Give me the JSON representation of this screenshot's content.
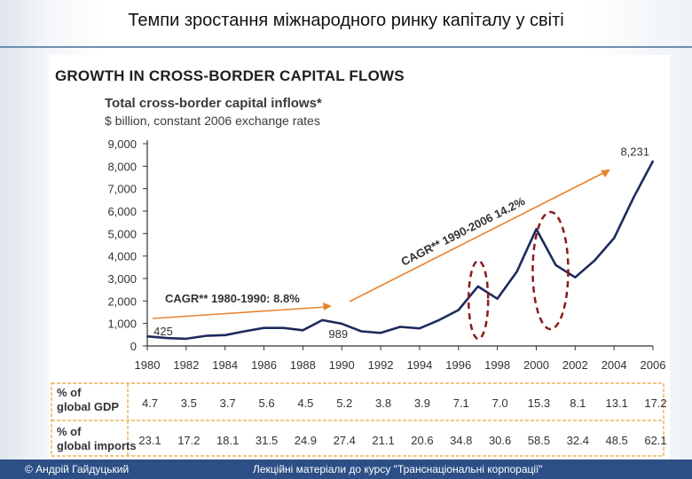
{
  "slide": {
    "title": "Темпи зростання міжнародного ринку капіталу у світі",
    "footer_author": "© Андрій Гайдуцький",
    "footer_course": "Лекційні матеріали до курсу \"Транснаціональні корпорації\""
  },
  "chart_data": {
    "type": "line",
    "title": "GROWTH IN CROSS-BORDER CAPITAL FLOWS",
    "subtitle": "Total cross-border capital inflows*",
    "units": "$ billion, constant 2006 exchange rates",
    "x": [
      1980,
      1981,
      1982,
      1983,
      1984,
      1985,
      1986,
      1987,
      1988,
      1989,
      1990,
      1991,
      1992,
      1993,
      1994,
      1995,
      1996,
      1997,
      1998,
      1999,
      2000,
      2001,
      2002,
      2003,
      2004,
      2005,
      2006
    ],
    "series": [
      {
        "values": [
          425,
          350,
          320,
          450,
          480,
          650,
          800,
          800,
          700,
          1150,
          989,
          650,
          580,
          850,
          780,
          1150,
          1600,
          2650,
          2100,
          3300,
          5200,
          3600,
          3050,
          3800,
          4800,
          6600,
          8231
        ]
      }
    ],
    "xlim": [
      1980,
      2006
    ],
    "ylim": [
      0,
      9000
    ],
    "y_ticks": [
      "0",
      "1,000",
      "2,000",
      "3,000",
      "4,000",
      "5,000",
      "6,000",
      "7,000",
      "8,000",
      "9,000"
    ],
    "x_ticks": [
      "1980",
      "1982",
      "1984",
      "1986",
      "1988",
      "1990",
      "1992",
      "1994",
      "1996",
      "1998",
      "2000",
      "2002",
      "2004",
      "2006"
    ],
    "point_labels": [
      {
        "x": 1980,
        "y": 425,
        "text": "425"
      },
      {
        "x": 1990,
        "y": 989,
        "text": "989"
      },
      {
        "x": 2006,
        "y": 8231,
        "text": "8,231"
      }
    ],
    "cagr_annotations": [
      {
        "text": "CAGR** 1980-1990: 8.8%"
      },
      {
        "text": "CAGR** 1990-2006 14.2%"
      }
    ],
    "highlighted_periods": [
      1997,
      2000
    ],
    "table": {
      "row_labels": [
        "% of global GDP",
        "% of global imports"
      ],
      "years": [
        1980,
        1982,
        1984,
        1986,
        1988,
        1990,
        1992,
        1994,
        1996,
        1998,
        2000,
        2002,
        2004,
        2006
      ],
      "gdp": [
        "4.7",
        "3.5",
        "3.7",
        "5.6",
        "4.5",
        "5.2",
        "3.8",
        "3.9",
        "7.1",
        "7.0",
        "15.3",
        "8.1",
        "13.1",
        "17.2"
      ],
      "imports": [
        "23.1",
        "17.2",
        "18.1",
        "31.5",
        "24.9",
        "27.4",
        "21.1",
        "20.6",
        "34.8",
        "30.6",
        "58.5",
        "32.4",
        "48.5",
        "62.1"
      ]
    },
    "colors": {
      "line": "#1e2a5e",
      "arrow": "#e8842f",
      "ellipse": "#8b1a1a",
      "table_border": "#e8a33a"
    }
  }
}
